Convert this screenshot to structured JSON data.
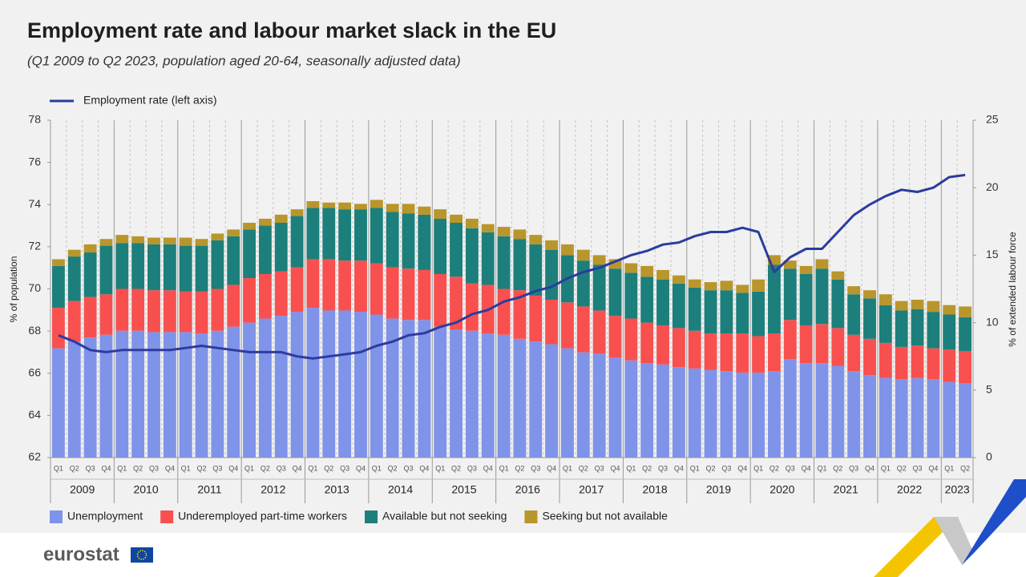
{
  "chart_data": {
    "type": "bar",
    "stacked": true,
    "title": "Employment rate and labour market slack in the EU",
    "subtitle": "(Q1 2009 to Q2 2023, population aged 20-64, seasonally adjusted data)",
    "y_label": "% of population",
    "y2_label": "% of extended labour force",
    "categories": [
      "Q1",
      "Q2",
      "Q3",
      "Q4",
      "Q1",
      "Q2",
      "Q3",
      "Q4",
      "Q1",
      "Q2",
      "Q3",
      "Q4",
      "Q1",
      "Q2",
      "Q3",
      "Q4",
      "Q1",
      "Q2",
      "Q3",
      "Q4",
      "Q1",
      "Q2",
      "Q3",
      "Q4",
      "Q1",
      "Q2",
      "Q3",
      "Q4",
      "Q1",
      "Q2",
      "Q3",
      "Q4",
      "Q1",
      "Q2",
      "Q3",
      "Q4",
      "Q1",
      "Q2",
      "Q3",
      "Q4",
      "Q1",
      "Q2",
      "Q3",
      "Q4",
      "Q1",
      "Q2",
      "Q3",
      "Q4",
      "Q1",
      "Q2",
      "Q3",
      "Q4",
      "Q1",
      "Q2",
      "Q3",
      "Q4",
      "Q1",
      "Q2"
    ],
    "years": [
      "2009",
      "2010",
      "2011",
      "2012",
      "2013",
      "2014",
      "2015",
      "2016",
      "2017",
      "2018",
      "2019",
      "2020",
      "2021",
      "2022",
      "2023"
    ],
    "ylim": [
      62,
      78
    ],
    "yticks": [
      62,
      64,
      66,
      68,
      70,
      72,
      74,
      76,
      78
    ],
    "y2lim": [
      0,
      25
    ],
    "y2ticks": [
      0,
      5,
      10,
      15,
      20,
      25
    ],
    "series": [
      {
        "name": "Unemployment",
        "color": "#7f93e8",
        "axis": "y2",
        "values": [
          8.1,
          8.6,
          8.9,
          9.1,
          9.4,
          9.4,
          9.3,
          9.3,
          9.3,
          9.2,
          9.4,
          9.7,
          10.0,
          10.3,
          10.5,
          10.8,
          11.1,
          10.9,
          10.9,
          10.8,
          10.6,
          10.3,
          10.2,
          10.2,
          9.7,
          9.5,
          9.4,
          9.2,
          9.1,
          8.8,
          8.6,
          8.4,
          8.1,
          7.8,
          7.7,
          7.4,
          7.2,
          7.0,
          6.9,
          6.7,
          6.6,
          6.5,
          6.4,
          6.3,
          6.3,
          6.4,
          7.3,
          7.0,
          7.0,
          6.8,
          6.4,
          6.1,
          5.9,
          5.8,
          5.9,
          5.8,
          5.6,
          5.5
        ]
      },
      {
        "name": "Underemployed part-time workers",
        "color": "#f8504f",
        "axis": "y2",
        "values": [
          3.0,
          3.0,
          3.0,
          3.0,
          3.1,
          3.1,
          3.1,
          3.1,
          3.0,
          3.1,
          3.1,
          3.1,
          3.3,
          3.3,
          3.3,
          3.3,
          3.6,
          3.8,
          3.7,
          3.8,
          3.8,
          3.8,
          3.8,
          3.7,
          3.9,
          3.9,
          3.5,
          3.6,
          3.4,
          3.6,
          3.4,
          3.3,
          3.4,
          3.4,
          3.2,
          3.1,
          3.1,
          3.0,
          2.9,
          2.9,
          2.8,
          2.7,
          2.8,
          2.9,
          2.7,
          2.8,
          2.9,
          2.8,
          2.9,
          2.8,
          2.7,
          2.7,
          2.6,
          2.4,
          2.4,
          2.3,
          2.4,
          2.4
        ]
      },
      {
        "name": "Available but not seeking",
        "color": "#1c7f7b",
        "axis": "y2",
        "values": [
          3.1,
          3.3,
          3.3,
          3.6,
          3.4,
          3.4,
          3.4,
          3.4,
          3.4,
          3.4,
          3.6,
          3.6,
          3.6,
          3.6,
          3.6,
          3.8,
          3.8,
          3.8,
          3.8,
          3.8,
          4.1,
          4.1,
          4.1,
          4.1,
          4.1,
          4.0,
          4.1,
          3.9,
          3.9,
          3.8,
          3.8,
          3.7,
          3.5,
          3.4,
          3.4,
          3.5,
          3.4,
          3.4,
          3.4,
          3.3,
          3.2,
          3.2,
          3.2,
          3.0,
          3.3,
          5.1,
          3.8,
          3.8,
          4.1,
          3.6,
          3.0,
          3.0,
          2.8,
          2.7,
          2.7,
          2.7,
          2.6,
          2.5
        ]
      },
      {
        "name": "Seeking but not available",
        "color": "#b8962c",
        "axis": "y2",
        "values": [
          0.5,
          0.5,
          0.6,
          0.5,
          0.6,
          0.5,
          0.5,
          0.5,
          0.6,
          0.5,
          0.5,
          0.5,
          0.5,
          0.5,
          0.6,
          0.5,
          0.5,
          0.4,
          0.5,
          0.4,
          0.6,
          0.6,
          0.7,
          0.6,
          0.7,
          0.6,
          0.7,
          0.6,
          0.7,
          0.7,
          0.7,
          0.7,
          0.8,
          0.8,
          0.7,
          0.7,
          0.7,
          0.8,
          0.7,
          0.6,
          0.6,
          0.6,
          0.7,
          0.6,
          0.9,
          0.7,
          0.6,
          0.6,
          0.7,
          0.6,
          0.6,
          0.6,
          0.8,
          0.7,
          0.7,
          0.8,
          0.7,
          0.8
        ]
      },
      {
        "name": "Employment rate (left axis)",
        "type": "line",
        "color": "#2b3c9e",
        "axis": "y",
        "values": [
          67.8,
          67.5,
          67.1,
          67.0,
          67.1,
          67.1,
          67.1,
          67.1,
          67.2,
          67.3,
          67.2,
          67.1,
          67.0,
          67.0,
          67.0,
          66.8,
          66.7,
          66.8,
          66.9,
          67.0,
          67.3,
          67.5,
          67.8,
          67.9,
          68.2,
          68.4,
          68.8,
          69.0,
          69.4,
          69.6,
          69.9,
          70.1,
          70.5,
          70.8,
          71.0,
          71.3,
          71.6,
          71.8,
          72.1,
          72.2,
          72.5,
          72.7,
          72.7,
          72.9,
          72.7,
          70.8,
          71.5,
          71.9,
          71.9,
          72.7,
          73.5,
          74.0,
          74.4,
          74.7,
          74.6,
          74.8,
          75.3,
          75.4
        ]
      }
    ]
  },
  "branding": "eurostat"
}
